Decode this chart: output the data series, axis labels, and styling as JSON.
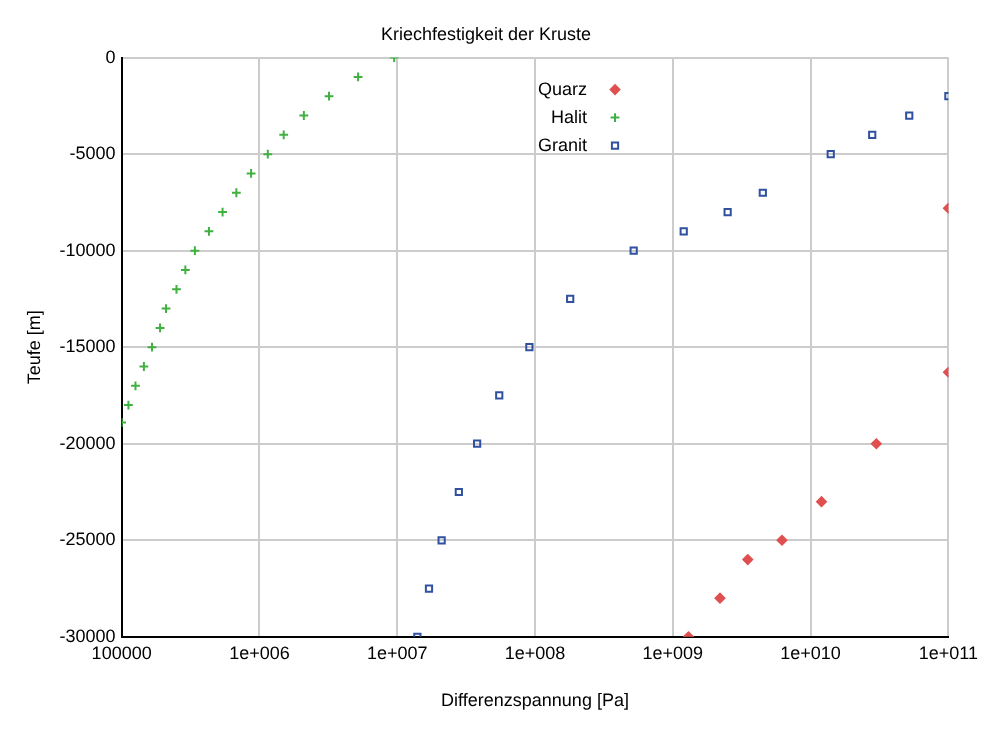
{
  "chart_data": {
    "type": "scatter",
    "title": "Kriechfestigkeit der Kruste",
    "xlabel": "Differenzspannung [Pa]",
    "ylabel": "Teufe [m]",
    "log": "x",
    "grid": true,
    "legend": "top",
    "xlim": [
      100000,
      100000000000
    ],
    "xticks": [
      {
        "value": 100000,
        "label": "100000"
      },
      {
        "value": 1000000,
        "label": "1e+006"
      },
      {
        "value": 10000000,
        "label": "1e+007"
      },
      {
        "value": 100000000,
        "label": "1e+008"
      },
      {
        "value": 1000000000,
        "label": "1e+009"
      },
      {
        "value": 10000000000,
        "label": "1e+010"
      },
      {
        "value": 100000000000,
        "label": "1e+011"
      }
    ],
    "ylim": [
      -30000,
      0
    ],
    "yticks": [
      -30000,
      -25000,
      -20000,
      -15000,
      -10000,
      -5000,
      0
    ],
    "series": [
      {
        "name": "Quarz",
        "color": "#e05050",
        "marker": "diamond",
        "x": [
          1300000000.0,
          2200000000.0,
          3500000000.0,
          6200000000.0,
          12000000000.0,
          30000000000.0,
          100000000000.0,
          100000000000.0
        ],
        "values": [
          -30000,
          -28000,
          -26000,
          -25000,
          -23000,
          -20000,
          -16300,
          -7800
        ]
      },
      {
        "name": "Halit",
        "color": "#40b040",
        "marker": "cross",
        "x": [
          9500000.0,
          5200000.0,
          3200000.0,
          2100000.0,
          1500000.0,
          1150000.0,
          870000.0,
          680000.0,
          540000.0,
          430000.0,
          340000.0,
          290000.0,
          250000.0,
          210000.0,
          190000.0,
          166000.0,
          145000.0,
          126000.0,
          112000.0,
          100000.0
        ],
        "values": [
          0,
          -1000,
          -2000,
          -3000,
          -4000,
          -5000,
          -6000,
          -7000,
          -8000,
          -9000,
          -10000,
          -11000,
          -12000,
          -13000,
          -14000,
          -15000,
          -16000,
          -17000,
          -18000,
          -18900
        ]
      },
      {
        "name": "Granit",
        "color": "#3050a0",
        "marker": "square",
        "x": [
          14000000.0,
          17000000.0,
          21000000.0,
          28000000.0,
          38000000.0,
          55000000.0,
          91000000.0,
          180000000.0,
          520000000.0,
          1200000000.0,
          2500000000.0,
          4500000000.0,
          14000000000.0,
          28000000000.0,
          52000000000.0,
          100000000000.0
        ],
        "values": [
          -30000,
          -27500,
          -25000,
          -22500,
          -20000,
          -17500,
          -15000,
          -12500,
          -10000,
          -9000,
          -8000,
          -7000,
          -5000,
          -4000,
          -3000,
          -2000
        ]
      }
    ]
  }
}
